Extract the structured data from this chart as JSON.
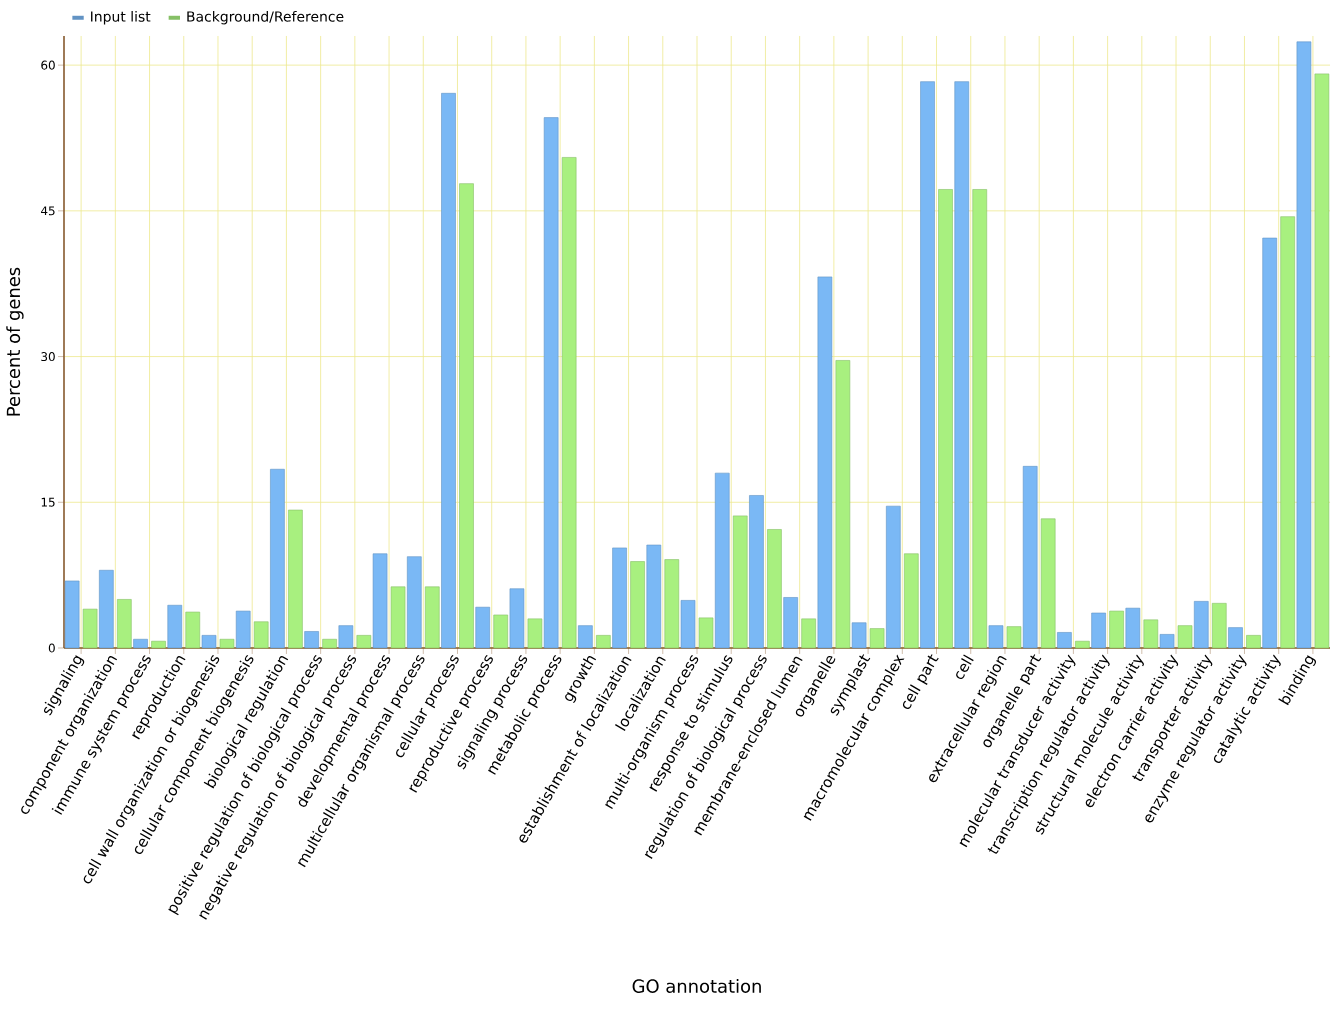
{
  "chart_data": {
    "type": "bar",
    "xlabel": "GO annotation",
    "ylabel": "Percent of genes",
    "categories": [
      "signaling",
      "component organization",
      "immune system process",
      "reproduction",
      "cell wall organization or biogenesis",
      "cellular component biogenesis",
      "biological regulation",
      "positive regulation of biological process",
      "negative regulation of biological process",
      "developmental process",
      "multicellular organismal process",
      "cellular process",
      "reproductive process",
      "signaling process",
      "metabolic process",
      "growth",
      "establishment of localization",
      "localization",
      "multi-organism process",
      "response to stimulus",
      "regulation of biological process",
      "membrane-enclosed lumen",
      "organelle",
      "symplast",
      "macromolecular complex",
      "cell part",
      "cell",
      "extracellular region",
      "organelle part",
      "molecular transducer activity",
      "transcription regulator activity",
      "structural molecule activity",
      "electron carrier activity",
      "transporter activity",
      "enzyme regulator activity",
      "catalytic activity",
      "binding"
    ],
    "series": [
      {
        "name": "Input list",
        "color": "#7ab8f5",
        "values": [
          6.9,
          8.0,
          0.9,
          4.4,
          1.3,
          3.8,
          18.4,
          1.7,
          2.3,
          9.7,
          9.4,
          57.1,
          4.2,
          6.1,
          54.6,
          2.3,
          10.3,
          10.6,
          4.9,
          18.0,
          15.7,
          5.2,
          38.2,
          2.6,
          14.6,
          58.3,
          58.3,
          2.3,
          18.7,
          1.6,
          3.6,
          4.1,
          1.4,
          4.8,
          2.1,
          42.2,
          62.4
        ]
      },
      {
        "name": "Background/Reference",
        "color": "#a8f07f",
        "values": [
          4.0,
          5.0,
          0.7,
          3.7,
          0.9,
          2.7,
          14.2,
          0.9,
          1.3,
          6.3,
          6.3,
          47.8,
          3.4,
          3.0,
          50.5,
          1.3,
          8.9,
          9.1,
          3.1,
          13.6,
          12.2,
          3.0,
          29.6,
          2.0,
          9.7,
          47.2,
          47.2,
          2.2,
          13.3,
          0.7,
          3.8,
          2.9,
          2.3,
          4.6,
          1.3,
          44.4,
          59.1
        ]
      }
    ],
    "ylim": [
      0,
      63
    ],
    "yticks": [
      0,
      15,
      30,
      45,
      60
    ],
    "grid": true,
    "legend": "top left"
  }
}
